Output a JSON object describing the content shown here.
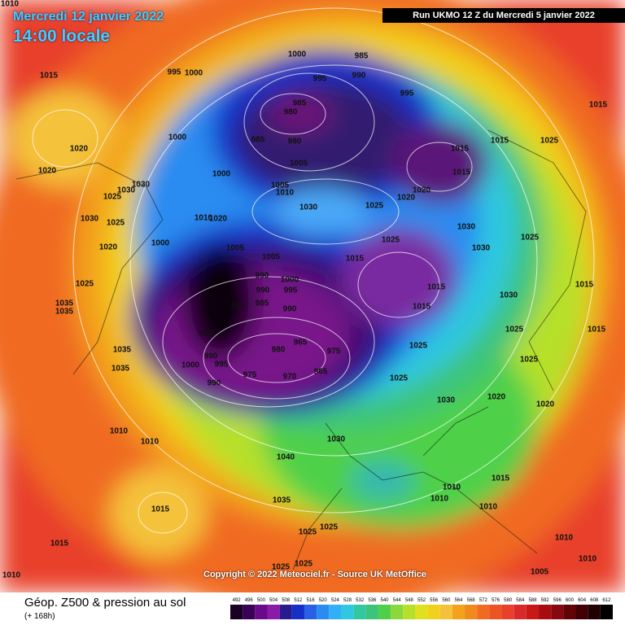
{
  "header": {
    "date": "Mercredi 12 janvier 2022",
    "time": "14:00 locale",
    "run": "Run UKMO 12 Z du Mercredi 5 janvier 2022"
  },
  "copyright": "Copyright © 2022 Meteociel.fr - Source UK MetOffice",
  "footer": {
    "title": "Géop. Z500 & pression au sol",
    "subtitle": "(+ 168h)"
  },
  "legend": {
    "levels": [
      492,
      496,
      500,
      504,
      508,
      512,
      516,
      520,
      524,
      528,
      532,
      536,
      540,
      544,
      548,
      552,
      556,
      560,
      564,
      568,
      572,
      576,
      580,
      584,
      588,
      592,
      596,
      600,
      604,
      608,
      612
    ]
  },
  "isobar_labels": [
    1010,
    1015,
    1020,
    1020,
    995,
    1000,
    1000,
    985,
    990,
    995,
    995,
    985,
    980,
    985,
    990,
    1000,
    1015,
    1015,
    1025,
    1015,
    1015,
    1020,
    1020,
    1005,
    1000,
    1005,
    1010,
    1030,
    1025,
    1030,
    1030,
    1025,
    1030,
    1025,
    1020,
    1010,
    1000,
    1020,
    1005,
    1005,
    1025,
    1030,
    1025,
    1030,
    1015,
    1000,
    990,
    990,
    995,
    985,
    990,
    990,
    1015,
    1015,
    1030,
    1015,
    1025,
    1035,
    1035,
    995,
    1025,
    1015,
    1025,
    1035,
    980,
    965,
    975,
    990,
    995,
    1000,
    1035,
    975,
    970,
    965,
    990,
    1025,
    1025,
    1030,
    1020,
    1020,
    1010,
    1010,
    1030,
    1040,
    1015,
    1035,
    1010,
    1010,
    1010,
    1015,
    1025,
    1025,
    1015,
    1010,
    1010,
    1025,
    1025,
    1005,
    1010
  ]
}
